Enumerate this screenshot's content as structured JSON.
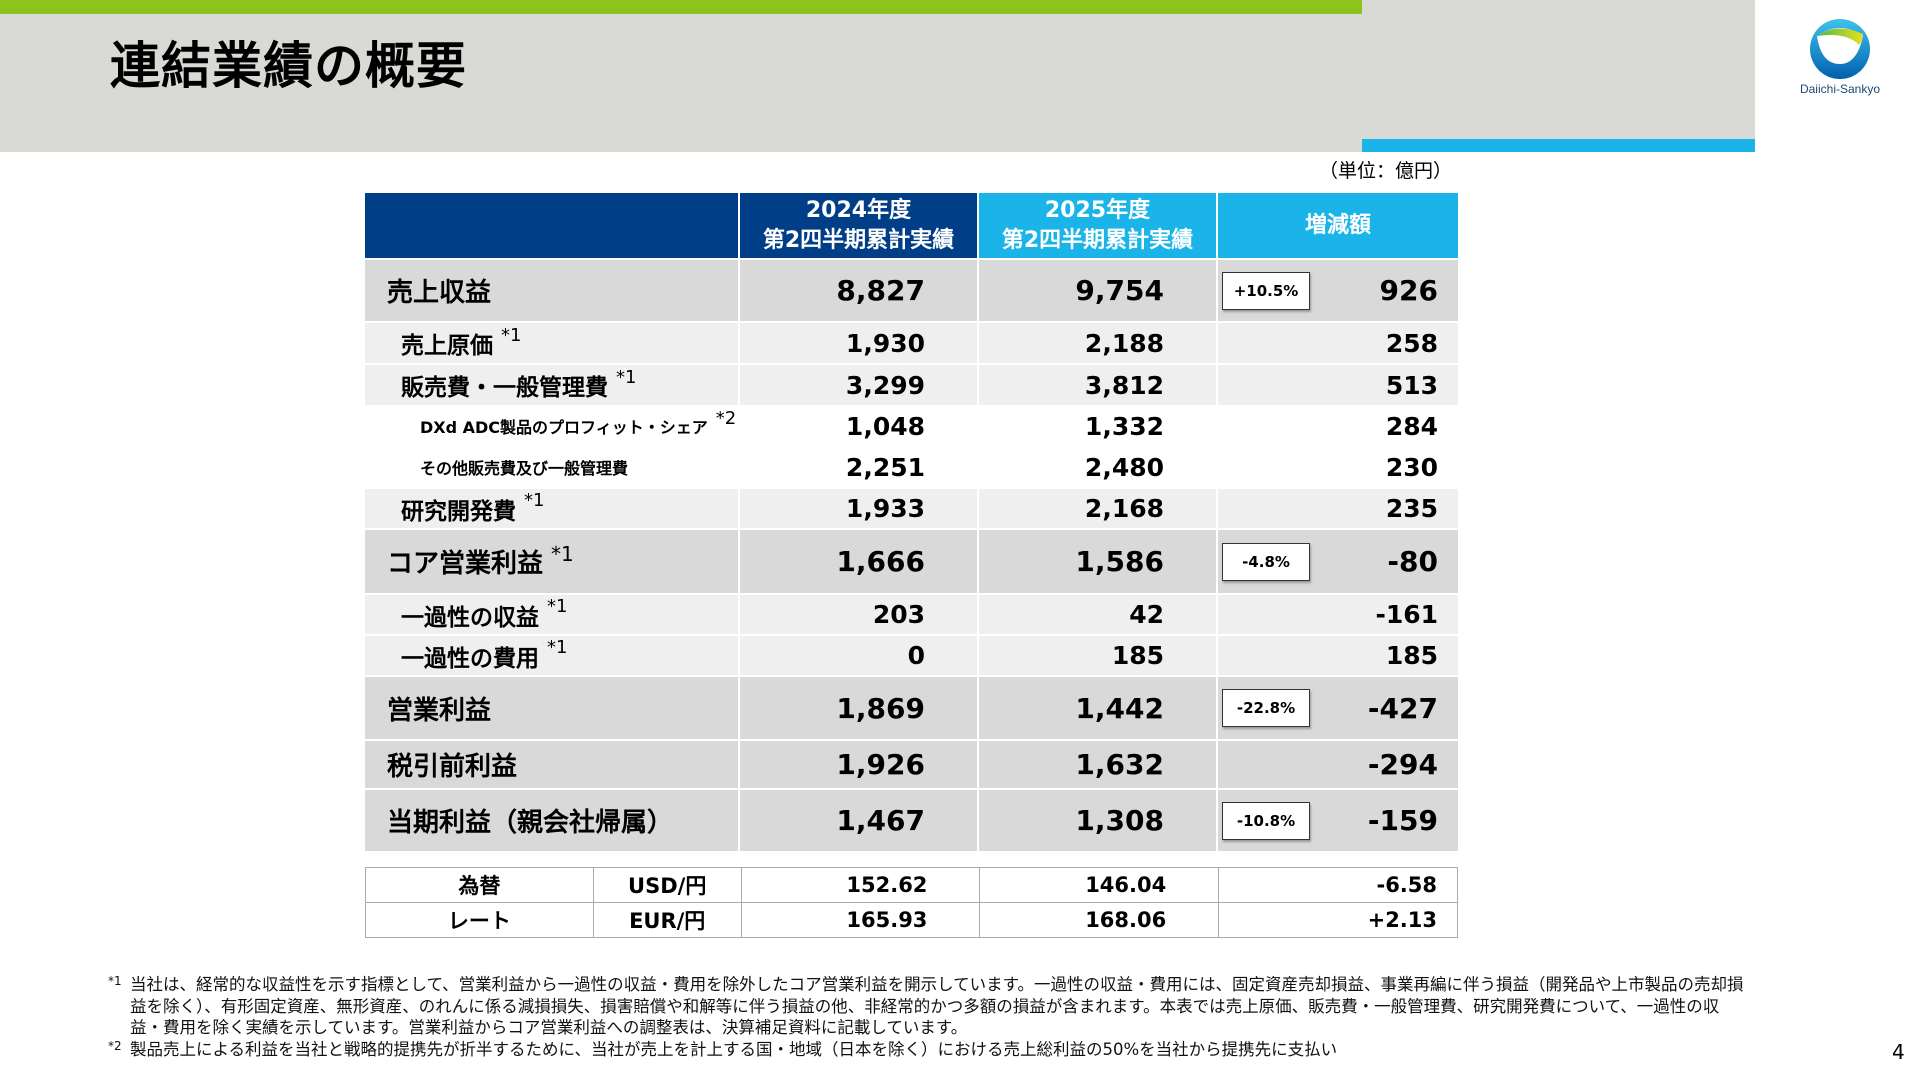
{
  "slide": {
    "title": "連結業績の概要",
    "unit": "（単位：億円）",
    "page_number": "4",
    "logo_text": "Daiichi-Sankyo",
    "colors": {
      "green": "#8dc21f",
      "navy": "#003f87",
      "cyan": "#1ab4e8",
      "band": "#d9d9d6"
    }
  },
  "table": {
    "headers": [
      "",
      "2024年度\n第2四半期累計実績",
      "2025年度\n第2四半期累計実績",
      "増減額"
    ],
    "rows": [
      {
        "label": "売上収益",
        "note": "",
        "fy2024": "8,827",
        "fy2025": "9,754",
        "change": "926",
        "change_pct": "+10.5%",
        "level": "major"
      },
      {
        "label": "売上原価",
        "note": "*1",
        "fy2024": "1,930",
        "fy2025": "2,188",
        "change": "258",
        "change_pct": "",
        "level": "sub"
      },
      {
        "label": "販売費・一般管理費",
        "note": "*1",
        "fy2024": "3,299",
        "fy2025": "3,812",
        "change": "513",
        "change_pct": "",
        "level": "sub"
      },
      {
        "label": "DXd ADC製品のプロフィット・シェア",
        "note": "*2",
        "fy2024": "1,048",
        "fy2025": "1,332",
        "change": "284",
        "change_pct": "",
        "level": "detail"
      },
      {
        "label": "その他販売費及び一般管理費",
        "note": "",
        "fy2024": "2,251",
        "fy2025": "2,480",
        "change": "230",
        "change_pct": "",
        "level": "detail"
      },
      {
        "label": "研究開発費",
        "note": "*1",
        "fy2024": "1,933",
        "fy2025": "2,168",
        "change": "235",
        "change_pct": "",
        "level": "sub"
      },
      {
        "label": "コア営業利益",
        "note": "*1",
        "fy2024": "1,666",
        "fy2025": "1,586",
        "change": "-80",
        "change_pct": "-4.8%",
        "level": "major"
      },
      {
        "label": "一過性の収益",
        "note": "*1",
        "fy2024": "203",
        "fy2025": "42",
        "change": "-161",
        "change_pct": "",
        "level": "sub"
      },
      {
        "label": "一過性の費用",
        "note": "*1",
        "fy2024": "0",
        "fy2025": "185",
        "change": "185",
        "change_pct": "",
        "level": "sub"
      },
      {
        "label": "営業利益",
        "note": "",
        "fy2024": "1,869",
        "fy2025": "1,442",
        "change": "-427",
        "change_pct": "-22.8%",
        "level": "major"
      },
      {
        "label": "税引前利益",
        "note": "",
        "fy2024": "1,926",
        "fy2025": "1,632",
        "change": "-294",
        "change_pct": "",
        "level": "major2"
      },
      {
        "label": "当期利益（親会社帰属）",
        "note": "",
        "fy2024": "1,467",
        "fy2025": "1,308",
        "change": "-159",
        "change_pct": "-10.8%",
        "level": "major"
      }
    ]
  },
  "fx": {
    "label_line1": "為替",
    "label_line2": "レート",
    "rows": [
      {
        "currency": "USD/円",
        "fy2024": "152.62",
        "fy2025": "146.04",
        "change": "-6.58"
      },
      {
        "currency": "EUR/円",
        "fy2024": "165.93",
        "fy2025": "168.06",
        "change": "+2.13"
      }
    ]
  },
  "footnotes": [
    {
      "mark": "*1",
      "text": "当社は、経常的な収益性を示す指標として、営業利益から一過性の収益・費用を除外したコア営業利益を開示しています。一過性の収益・費用には、固定資産売却損益、事業再編に伴う損益（開発品や上市製品の売却損益を除く）、有形固定資産、無形資産、のれんに係る減損損失、損害賠償や和解等に伴う損益の他、非経常的かつ多額の損益が含まれます。本表では売上原価、販売費・一般管理費、研究開発費について、一過性の収益・費用を除く実績を示しています。営業利益からコア営業利益への調整表は、決算補足資料に記載しています。"
    },
    {
      "mark": "*2",
      "text": "製品売上による利益を当社と戦略的提携先が折半するために、当社が売上を計上する国・地域（日本を除く）における売上総利益の50%を当社から提携先に支払い"
    }
  ]
}
